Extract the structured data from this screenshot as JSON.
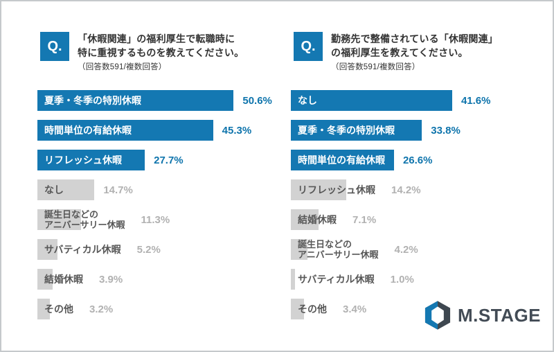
{
  "colors": {
    "blue": "#1478B2",
    "blue_pct_text": "#0E74AC",
    "gray_bar": "#D2D2D2",
    "gray_label": "#575757",
    "gray_pct_text": "#B1B1B1",
    "text_dark": "#333333",
    "logo_dark": "#424B55",
    "border": "#C5C9CC",
    "background": "#FFFFFF"
  },
  "logo": {
    "text": "M.STAGE"
  },
  "chart_data": [
    {
      "type": "bar",
      "orientation": "horizontal",
      "q_badge": "Q.",
      "title_lines": [
        "「休暇関連」の福利厚生で転職時に",
        "特に重視するものを教えてください。"
      ],
      "note": "（回答数591/複数回答）",
      "unit": "%",
      "xlim": [
        0,
        60
      ],
      "grid": false,
      "legend": "none",
      "categories": [
        "夏季・冬季の特別休暇",
        "時間単位の有給休暇",
        "リフレッシュ休暇",
        "なし",
        "誕生日などの\nアニバーサリー休暇",
        "サバティカル休暇",
        "結婚休暇",
        "その他"
      ],
      "values": [
        50.6,
        45.3,
        27.7,
        14.7,
        11.3,
        5.2,
        3.9,
        3.2
      ],
      "value_labels": [
        "50.6%",
        "45.3%",
        "27.7%",
        "14.7%",
        "11.3%",
        "5.2%",
        "3.9%",
        "3.2%"
      ],
      "highlighted": [
        true,
        true,
        true,
        false,
        false,
        false,
        false,
        false
      ]
    },
    {
      "type": "bar",
      "orientation": "horizontal",
      "q_badge": "Q.",
      "title_lines": [
        "勤務先で整備されている「休暇関連」",
        "の福利厚生を教えてください。"
      ],
      "note": "（回答数591/複数回答）",
      "unit": "%",
      "xlim": [
        0,
        60
      ],
      "grid": false,
      "legend": "none",
      "categories": [
        "なし",
        "夏季・冬季の特別休暇",
        "時間単位の有給休暇",
        "リフレッシュ休暇",
        "結婚休暇",
        "誕生日などの\nアニバーサリー休暇",
        "サバティカル休暇",
        "その他"
      ],
      "values": [
        41.6,
        33.8,
        26.6,
        14.2,
        7.1,
        4.2,
        1.0,
        3.4
      ],
      "value_labels": [
        "41.6%",
        "33.8%",
        "26.6%",
        "14.2%",
        "7.1%",
        "4.2%",
        "1.0%",
        "3.4%"
      ],
      "highlighted": [
        true,
        true,
        true,
        false,
        false,
        false,
        false,
        false
      ]
    }
  ]
}
